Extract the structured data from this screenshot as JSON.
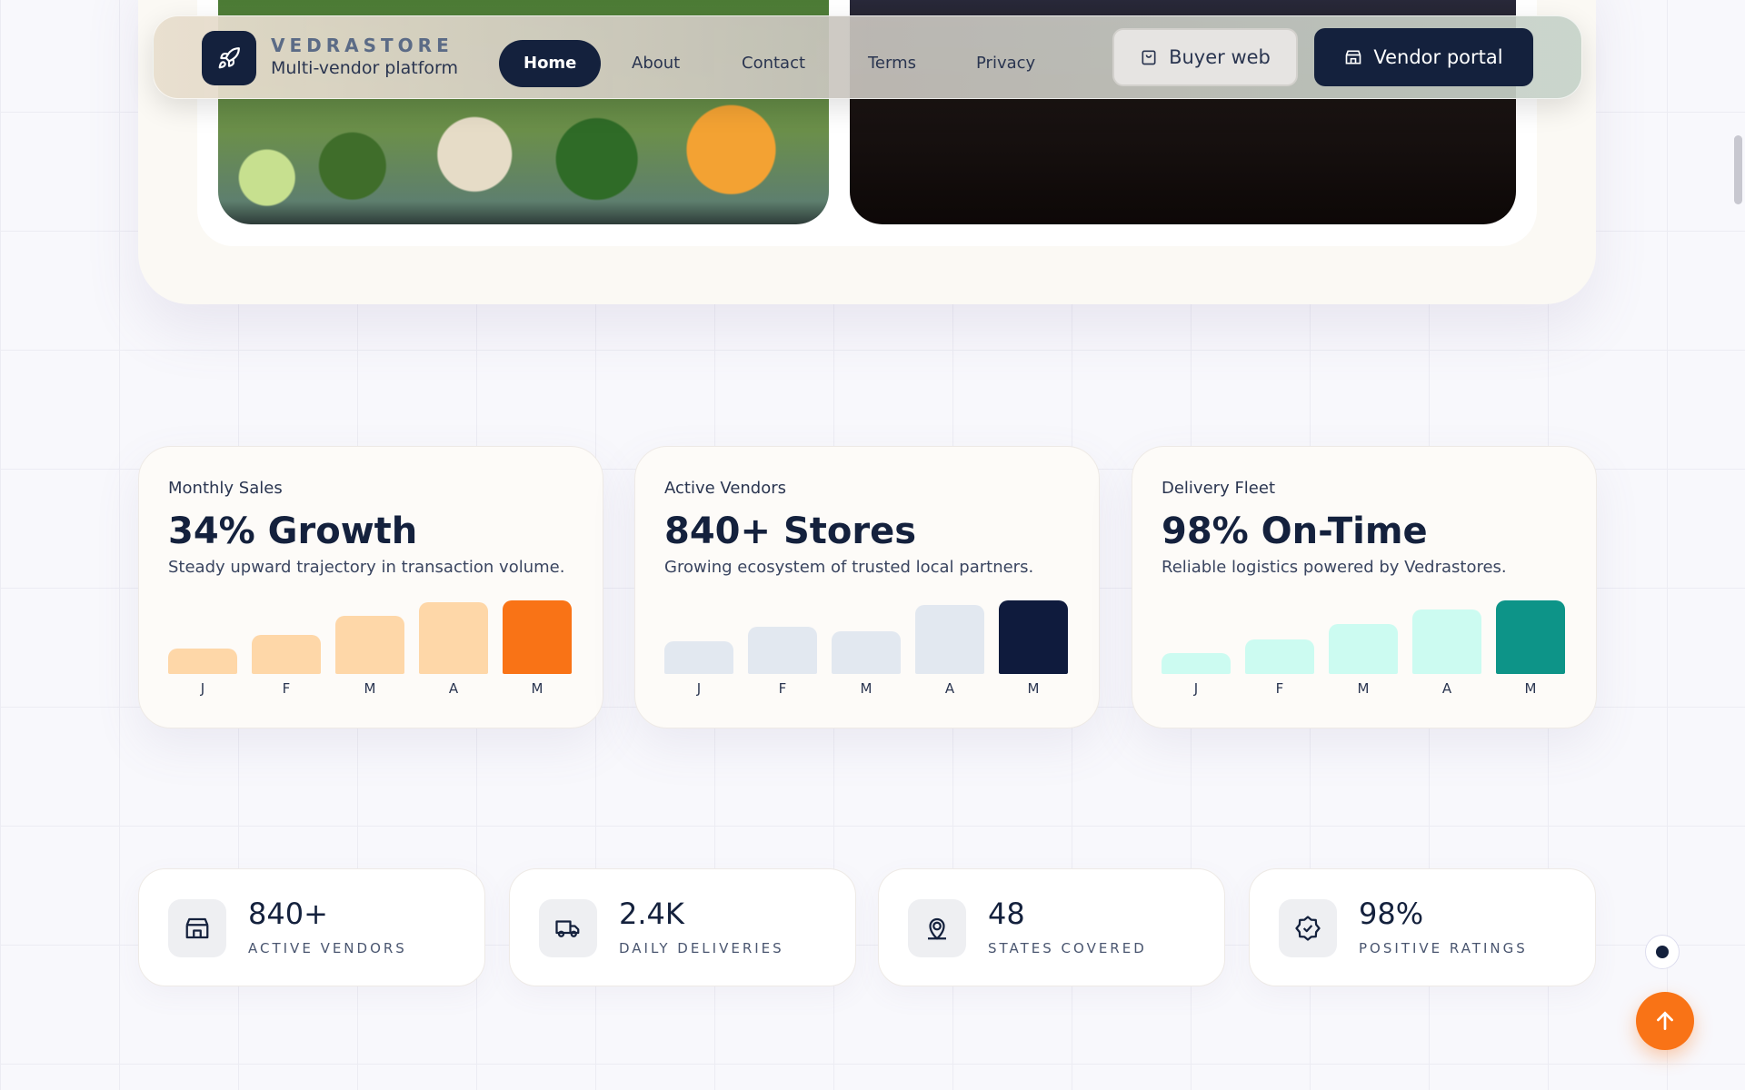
{
  "header": {
    "brand": "VEDRASTORE",
    "tagline": "Multi-vendor platform",
    "nav": [
      "Home",
      "About",
      "Contact",
      "Terms",
      "Privacy"
    ],
    "buttons": [
      "Buyer web",
      "Vendor portal"
    ]
  },
  "cards": [
    {
      "label": "Monthly Sales",
      "headline": "34% Growth",
      "description": "Steady upward trajectory in transaction volume.",
      "chart": {
        "type": "bar",
        "categories": [
          "J",
          "F",
          "M",
          "A",
          "M"
        ],
        "values": [
          35,
          53,
          79,
          98,
          100
        ],
        "colors": [
          "#fed7a8",
          "#fed7a8",
          "#fed7a8",
          "#fed7a8",
          "#f97316"
        ]
      }
    },
    {
      "label": "Active Vendors",
      "headline": "840+ Stores",
      "description": "Growing ecosystem of trusted local partners.",
      "chart": {
        "type": "bar",
        "categories": [
          "J",
          "F",
          "M",
          "A",
          "M"
        ],
        "values": [
          44,
          64,
          58,
          94,
          100
        ],
        "colors": [
          "#e2e8f0",
          "#e2e8f0",
          "#e2e8f0",
          "#e2e8f0",
          "#0f1b3d"
        ]
      }
    },
    {
      "label": "Delivery Fleet",
      "headline": "98% On-Time",
      "description": "Reliable logistics powered by Vedrastores.",
      "chart": {
        "type": "bar",
        "categories": [
          "J",
          "F",
          "M",
          "A",
          "M"
        ],
        "values": [
          29,
          47,
          68,
          88,
          100
        ],
        "colors": [
          "#ccfbf1",
          "#ccfbf1",
          "#ccfbf1",
          "#ccfbf1",
          "#0d9488"
        ]
      }
    }
  ],
  "stats": [
    {
      "value": "840+",
      "label": "ACTIVE VENDORS"
    },
    {
      "value": "2.4K",
      "label": "DAILY DELIVERIES"
    },
    {
      "value": "48",
      "label": "STATES COVERED"
    },
    {
      "value": "98%",
      "label": "POSITIVE RATINGS"
    }
  ]
}
